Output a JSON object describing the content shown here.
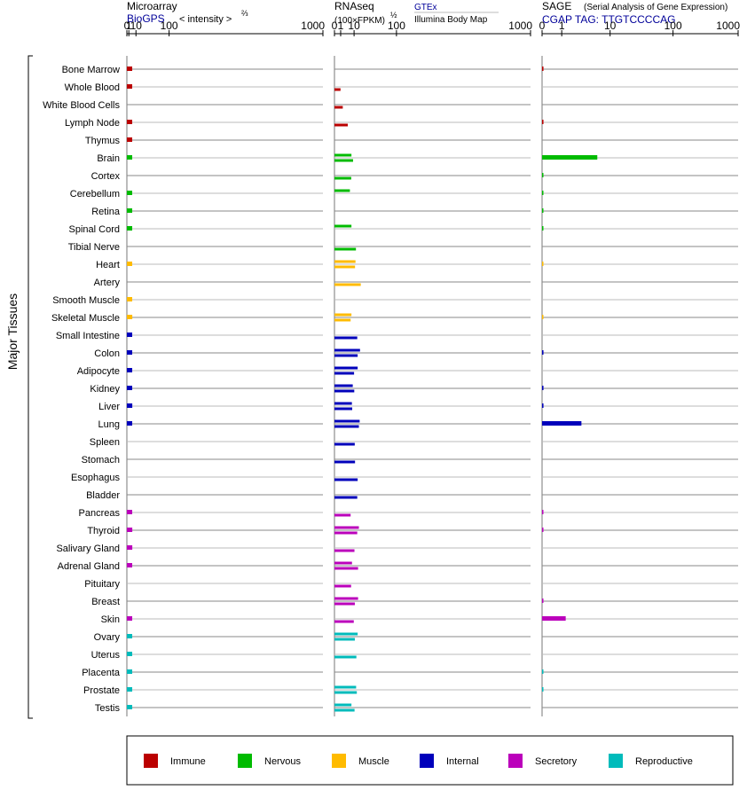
{
  "chart_data": {
    "type": "bar",
    "y_axis_label": "Major Tissues",
    "panels": [
      {
        "id": "microarray",
        "title": "Microarray",
        "subtitle": "BioGPS",
        "scale_label": "< intensity >",
        "scale_exp": "⅔",
        "ticks": [
          "0",
          "1",
          "10",
          "100",
          "1000"
        ],
        "xlim": [
          0,
          1000
        ],
        "transform": "pow2/3"
      },
      {
        "id": "rnaseq",
        "title": "RNAseq",
        "scale_label": "(100×FPKM)",
        "scale_exp": "½",
        "source1": "GTEx",
        "source2": "Illumina Body Map",
        "ticks": [
          "0",
          "1",
          "10",
          "100",
          "1000"
        ],
        "xlim": [
          0,
          1000
        ],
        "transform": "pow1/2"
      },
      {
        "id": "sage",
        "title": "SAGE",
        "title_note": "(Serial Analysis of Gene Expression)",
        "subtitle": "CGAP  TAG: TTGTCCCCAG",
        "ticks": [
          "0",
          "1",
          "10",
          "100",
          "1000"
        ],
        "xlim": [
          0,
          1000
        ],
        "transform": "log"
      }
    ],
    "tissues": [
      {
        "name": "Bone Marrow",
        "group": "immune",
        "microarray": 4.5,
        "gtex": null,
        "ibm": null,
        "sage": 0.05
      },
      {
        "name": "Whole Blood",
        "group": "immune",
        "microarray": 4.5,
        "gtex": null,
        "ibm": 0.95,
        "sage": null
      },
      {
        "name": "White Blood Cells",
        "group": "immune",
        "microarray": null,
        "gtex": null,
        "ibm": 1.8,
        "sage": null
      },
      {
        "name": "Lymph Node",
        "group": "immune",
        "microarray": 4.5,
        "gtex": null,
        "ibm": 4.6,
        "sage": 0.05
      },
      {
        "name": "Thymus",
        "group": "immune",
        "microarray": 4.5,
        "gtex": null,
        "ibm": null,
        "sage": null
      },
      {
        "name": "Brain",
        "group": "nervous",
        "microarray": 4.5,
        "gtex": 7.5,
        "ibm": 9.0,
        "sage": 6.0
      },
      {
        "name": "Cortex",
        "group": "nervous",
        "microarray": null,
        "gtex": null,
        "ibm": 7.3,
        "sage": 0.03
      },
      {
        "name": "Cerebellum",
        "group": "nervous",
        "microarray": 4.5,
        "gtex": 6.2,
        "ibm": null,
        "sage": 0.03
      },
      {
        "name": "Retina",
        "group": "nervous",
        "microarray": 4.5,
        "gtex": null,
        "ibm": null,
        "sage": 0.03
      },
      {
        "name": "Spinal Cord",
        "group": "nervous",
        "microarray": 4.5,
        "gtex": 7.5,
        "ibm": null,
        "sage": 0.03
      },
      {
        "name": "Tibial Nerve",
        "group": "nervous",
        "microarray": null,
        "gtex": null,
        "ibm": 12.0,
        "sage": null
      },
      {
        "name": "Heart",
        "group": "muscle",
        "microarray": 4.5,
        "gtex": 11.5,
        "ibm": 11.0,
        "sage": 0.02
      },
      {
        "name": "Artery",
        "group": "muscle",
        "microarray": null,
        "gtex": null,
        "ibm": 18.0,
        "sage": null
      },
      {
        "name": "Smooth Muscle",
        "group": "muscle",
        "microarray": 4.5,
        "gtex": null,
        "ibm": null,
        "sage": null
      },
      {
        "name": "Skeletal Muscle",
        "group": "muscle",
        "microarray": 4.6,
        "gtex": 7.5,
        "ibm": 6.8,
        "sage": 0.02
      },
      {
        "name": "Small Intestine",
        "group": "internal",
        "microarray": 4.5,
        "gtex": null,
        "ibm": 13.5,
        "sage": null
      },
      {
        "name": "Colon",
        "group": "internal",
        "microarray": 4.5,
        "gtex": 17.0,
        "ibm": 14.0,
        "sage": 0.05
      },
      {
        "name": "Adipocyte",
        "group": "internal",
        "microarray": 4.5,
        "gtex": 14.0,
        "ibm": 10.0,
        "sage": null
      },
      {
        "name": "Kidney",
        "group": "internal",
        "microarray": 4.5,
        "gtex": 8.7,
        "ibm": 10.2,
        "sage": 0.05
      },
      {
        "name": "Liver",
        "group": "internal",
        "microarray": 4.6,
        "gtex": 7.9,
        "ibm": 8.2,
        "sage": 0.05
      },
      {
        "name": "Lung",
        "group": "internal",
        "microarray": 4.5,
        "gtex": 16.5,
        "ibm": 15.5,
        "sage": 3.0
      },
      {
        "name": "Spleen",
        "group": "internal",
        "microarray": null,
        "gtex": null,
        "ibm": 10.7,
        "sage": null
      },
      {
        "name": "Stomach",
        "group": "internal",
        "microarray": null,
        "gtex": null,
        "ibm": 11.0,
        "sage": null
      },
      {
        "name": "Esophagus",
        "group": "internal",
        "microarray": null,
        "gtex": null,
        "ibm": 14.0,
        "sage": null
      },
      {
        "name": "Bladder",
        "group": "internal",
        "microarray": null,
        "gtex": null,
        "ibm": 13.5,
        "sage": null
      },
      {
        "name": "Pancreas",
        "group": "secretory",
        "microarray": 4.5,
        "gtex": null,
        "ibm": 6.8,
        "sage": 0.03
      },
      {
        "name": "Thyroid",
        "group": "secretory",
        "microarray": 4.6,
        "gtex": 15.5,
        "ibm": 13.5,
        "sage": 0.03
      },
      {
        "name": "Salivary Gland",
        "group": "secretory",
        "microarray": 4.6,
        "gtex": null,
        "ibm": 10.4,
        "sage": null
      },
      {
        "name": "Adrenal Gland",
        "group": "secretory",
        "microarray": 4.5,
        "gtex": 8.0,
        "ibm": 14.5,
        "sage": null
      },
      {
        "name": "Pituitary",
        "group": "secretory",
        "microarray": null,
        "gtex": null,
        "ibm": 7.2,
        "sage": null
      },
      {
        "name": "Breast",
        "group": "secretory",
        "microarray": null,
        "gtex": 14.5,
        "ibm": 10.8,
        "sage": 0.03
      },
      {
        "name": "Skin",
        "group": "secretory",
        "microarray": 4.5,
        "gtex": null,
        "ibm": 9.7,
        "sage": 1.3
      },
      {
        "name": "Ovary",
        "group": "reproductive",
        "microarray": 4.5,
        "gtex": 14.0,
        "ibm": 10.8,
        "sage": null
      },
      {
        "name": "Uterus",
        "group": "reproductive",
        "microarray": 4.5,
        "gtex": null,
        "ibm": 12.5,
        "sage": null
      },
      {
        "name": "Placenta",
        "group": "reproductive",
        "microarray": 4.5,
        "gtex": null,
        "ibm": null,
        "sage": 0.03
      },
      {
        "name": "Prostate",
        "group": "reproductive",
        "microarray": 4.5,
        "gtex": 12.2,
        "ibm": 13.0,
        "sage": 0.03
      },
      {
        "name": "Testis",
        "group": "reproductive",
        "microarray": 4.5,
        "gtex": 7.5,
        "ibm": 10.5,
        "sage": null
      }
    ],
    "legend": [
      {
        "id": "immune",
        "label": "Immune",
        "color": "#bb0000"
      },
      {
        "id": "nervous",
        "label": "Nervous",
        "color": "#00bb00"
      },
      {
        "id": "muscle",
        "label": "Muscle",
        "color": "#ffbb00"
      },
      {
        "id": "internal",
        "label": "Internal",
        "color": "#0000bb"
      },
      {
        "id": "secretory",
        "label": "Secretory",
        "color": "#bb00bb"
      },
      {
        "id": "reproductive",
        "label": "Reproductive",
        "color": "#00bbbb"
      }
    ],
    "legend_placement": "bottom"
  }
}
